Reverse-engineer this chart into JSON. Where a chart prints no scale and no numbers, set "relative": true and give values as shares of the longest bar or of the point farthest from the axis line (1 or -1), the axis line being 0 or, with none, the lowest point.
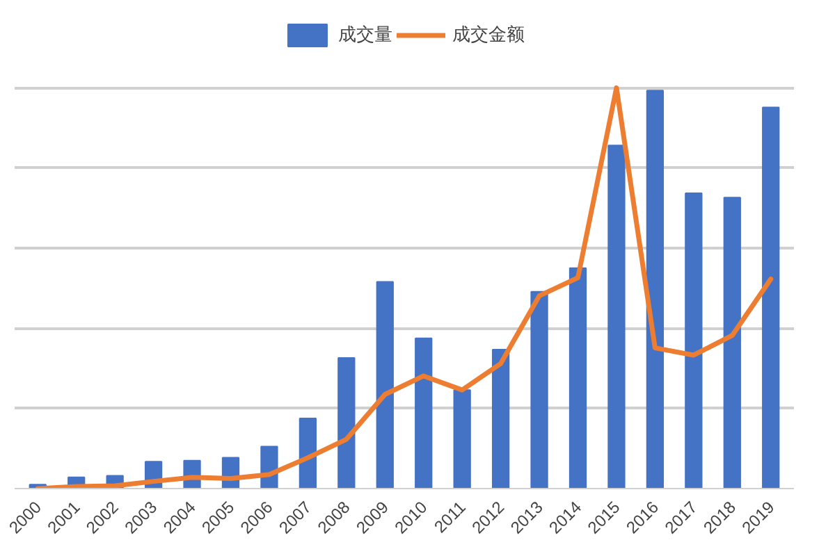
{
  "chart_data": {
    "type": "bar",
    "relative": true,
    "grid": "y",
    "legend": "top",
    "categories": [
      "2000",
      "2001",
      "2002",
      "2003",
      "2004",
      "2005",
      "2006",
      "2007",
      "2008",
      "2009",
      "2010",
      "2011",
      "2012",
      "2013",
      "2014",
      "2015",
      "2016",
      "2017",
      "2018",
      "2019"
    ],
    "series": [
      {
        "name": "成交量",
        "color": "#4472c4",
        "values": [
          0.01,
          0.028,
          0.032,
          0.067,
          0.07,
          0.077,
          0.105,
          0.175,
          0.326,
          0.516,
          0.375,
          0.246,
          0.347,
          0.491,
          0.55,
          0.856,
          0.993,
          0.737,
          0.726,
          0.951
        ]
      },
      {
        "name": "成交金额",
        "color": "#ed7d31",
        "type": "line",
        "values": [
          0,
          0.005,
          0.007,
          0.018,
          0.028,
          0.025,
          0.035,
          0.077,
          0.123,
          0.235,
          0.281,
          0.246,
          0.312,
          0.481,
          0.526,
          1,
          0.351,
          0.333,
          0.382,
          0.523
        ]
      }
    ]
  }
}
